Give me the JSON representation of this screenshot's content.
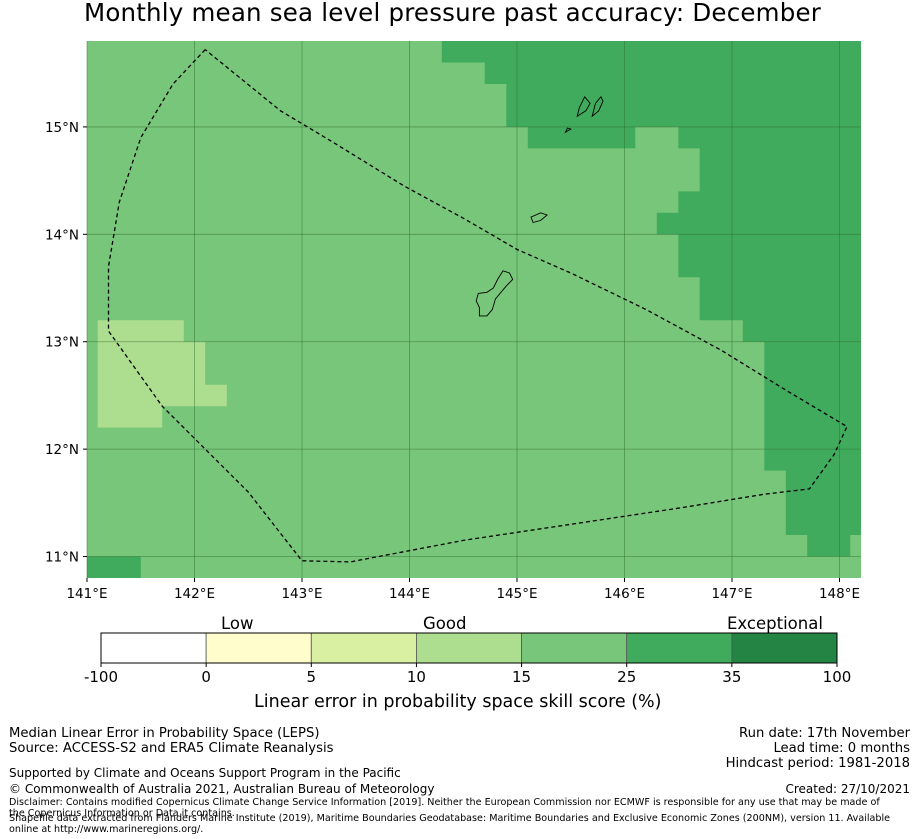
{
  "title": "Monthly mean sea level pressure past accuracy: December",
  "map": {
    "lon_range": [
      141.0,
      148.2
    ],
    "lat_range": [
      10.8,
      15.8
    ],
    "lon_ticks": [
      {
        "value": 141,
        "label": "141°E"
      },
      {
        "value": 142,
        "label": "142°E"
      },
      {
        "value": 143,
        "label": "143°E"
      },
      {
        "value": 144,
        "label": "144°E"
      },
      {
        "value": 145,
        "label": "145°E"
      },
      {
        "value": 146,
        "label": "146°E"
      },
      {
        "value": 147,
        "label": "147°E"
      },
      {
        "value": 148,
        "label": "148°E"
      }
    ],
    "lat_ticks": [
      {
        "value": 15,
        "label": "15°N"
      },
      {
        "value": 14,
        "label": "14°N"
      },
      {
        "value": 13,
        "label": "13°N"
      },
      {
        "value": 12,
        "label": "12°N"
      },
      {
        "value": 11,
        "label": "11°N"
      }
    ],
    "colors": {
      "cat_0_5": "#fffdcc",
      "cat_5_10": "#d9f0a3",
      "cat_10_15": "#addd8e",
      "cat_15_25": "#78c679",
      "cat_25_35": "#41ab5d",
      "cat_35_100": "#238443",
      "below_zero": "#ffffff"
    },
    "base_category": "cat_15_25",
    "regions": [
      {
        "category": "cat_25_35",
        "rings": [
          [
            [
              144.3,
              15.8
            ],
            [
              148.2,
              15.8
            ],
            [
              148.2,
              11.2
            ],
            [
              148.1,
              11.2
            ],
            [
              148.1,
              11.0
            ],
            [
              147.7,
              11.0
            ],
            [
              147.7,
              11.2
            ],
            [
              147.5,
              11.2
            ],
            [
              147.5,
              11.8
            ],
            [
              147.3,
              11.8
            ],
            [
              147.3,
              13.0
            ],
            [
              147.1,
              13.0
            ],
            [
              147.1,
              13.2
            ],
            [
              146.7,
              13.2
            ],
            [
              146.7,
              13.6
            ],
            [
              146.5,
              13.6
            ],
            [
              146.5,
              14.0
            ],
            [
              146.3,
              14.0
            ],
            [
              146.3,
              14.2
            ],
            [
              146.5,
              14.2
            ],
            [
              146.5,
              14.4
            ],
            [
              146.7,
              14.4
            ],
            [
              146.7,
              14.8
            ],
            [
              146.5,
              14.8
            ],
            [
              146.5,
              15.0
            ],
            [
              146.1,
              15.0
            ],
            [
              146.1,
              14.8
            ],
            [
              145.1,
              14.8
            ],
            [
              145.1,
              15.0
            ],
            [
              144.9,
              15.0
            ],
            [
              144.9,
              15.4
            ],
            [
              144.7,
              15.4
            ],
            [
              144.7,
              15.6
            ],
            [
              144.3,
              15.6
            ]
          ]
        ]
      },
      {
        "category": "cat_10_15",
        "rings": [
          [
            [
              141.1,
              13.2
            ],
            [
              141.9,
              13.2
            ],
            [
              141.9,
              13.0
            ],
            [
              142.1,
              13.0
            ],
            [
              142.1,
              12.6
            ],
            [
              142.3,
              12.6
            ],
            [
              142.3,
              12.4
            ],
            [
              141.7,
              12.4
            ],
            [
              141.7,
              12.2
            ],
            [
              141.1,
              12.2
            ]
          ]
        ]
      },
      {
        "category": "cat_25_35",
        "rings": [
          [
            [
              141.0,
              11.0
            ],
            [
              141.5,
              11.0
            ],
            [
              141.5,
              10.8
            ],
            [
              141.0,
              10.8
            ]
          ]
        ]
      }
    ],
    "islands": [
      [
        [
          144.65,
          13.24
        ],
        [
          144.72,
          13.24
        ],
        [
          144.77,
          13.3
        ],
        [
          144.8,
          13.4
        ],
        [
          144.9,
          13.52
        ],
        [
          144.96,
          13.58
        ],
        [
          144.93,
          13.64
        ],
        [
          144.87,
          13.66
        ],
        [
          144.82,
          13.58
        ],
        [
          144.78,
          13.5
        ],
        [
          144.72,
          13.46
        ],
        [
          144.64,
          13.45
        ],
        [
          144.62,
          13.38
        ],
        [
          144.65,
          13.32
        ]
      ],
      [
        [
          145.15,
          14.11
        ],
        [
          145.22,
          14.13
        ],
        [
          145.28,
          14.18
        ],
        [
          145.22,
          14.2
        ],
        [
          145.13,
          14.16
        ]
      ],
      [
        [
          145.56,
          15.1
        ],
        [
          145.64,
          15.15
        ],
        [
          145.68,
          15.22
        ],
        [
          145.63,
          15.28
        ],
        [
          145.58,
          15.18
        ]
      ],
      [
        [
          145.7,
          15.1
        ],
        [
          145.76,
          15.15
        ],
        [
          145.8,
          15.24
        ],
        [
          145.78,
          15.28
        ],
        [
          145.73,
          15.22
        ]
      ],
      [
        [
          145.45,
          14.95
        ],
        [
          145.5,
          14.98
        ],
        [
          145.47,
          14.99
        ]
      ]
    ],
    "eez_boundary": [
      [
        142.1,
        15.72
      ],
      [
        141.8,
        15.4
      ],
      [
        141.5,
        14.9
      ],
      [
        141.3,
        14.3
      ],
      [
        141.2,
        13.7
      ],
      [
        141.2,
        13.1
      ],
      [
        141.7,
        12.4
      ],
      [
        142.5,
        11.6
      ],
      [
        143.0,
        10.96
      ],
      [
        143.45,
        10.95
      ],
      [
        144.5,
        11.15
      ],
      [
        145.5,
        11.3
      ],
      [
        146.5,
        11.45
      ],
      [
        147.3,
        11.58
      ],
      [
        147.72,
        11.63
      ],
      [
        147.95,
        11.95
      ],
      [
        148.07,
        12.21
      ],
      [
        147.5,
        12.55
      ],
      [
        146.9,
        12.92
      ],
      [
        146.2,
        13.3
      ],
      [
        145.5,
        13.64
      ],
      [
        145.0,
        13.86
      ],
      [
        144.5,
        14.15
      ],
      [
        143.95,
        14.45
      ],
      [
        143.3,
        14.85
      ],
      [
        142.8,
        15.15
      ],
      [
        142.1,
        15.72
      ]
    ]
  },
  "colorbar": {
    "segments": [
      {
        "category": "below_zero"
      },
      {
        "category": "cat_0_5"
      },
      {
        "category": "cat_5_10"
      },
      {
        "category": "cat_10_15"
      },
      {
        "category": "cat_15_25"
      },
      {
        "category": "cat_25_35"
      },
      {
        "category": "cat_35_100"
      }
    ],
    "ticks": [
      "-100",
      "0",
      "5",
      "10",
      "15",
      "25",
      "35",
      "100"
    ],
    "low_label": "Low",
    "good_label": "Good",
    "exceptional_label": "Exceptional",
    "axis_label": "Linear error in probability space skill score (%)"
  },
  "footer": {
    "left_line1": "Median Linear Error in Probability Space (LEPS)",
    "left_line2": "Source: ACCESS-S2 and ERA5 Climate Reanalysis",
    "run_date": "Run date: 17th November",
    "lead_time": "Lead time: 0 months",
    "hindcast": "Hindcast period: 1981-2018",
    "supported": "Supported by Climate and Oceans Support Program in the Pacific",
    "copyright": "© Commonwealth of Australia 2021, Australian Bureau of Meteorology",
    "created": "Created: 27/10/2021",
    "disclaimer": "Disclaimer: Contains modified Copernicus Climate Change Service Information [2019]. Neither the European Commission nor ECMWF is responsible for any use that may be made of the Copernicus Information or Data it contains.",
    "shapefile": "Shapefile data extracted from Flanders Marine Institute (2019), Maritime Boundaries Geodatabase: Maritime Boundaries and Exclusive Economic Zones (200NM), version 11. Available online at http://www.marineregions.org/."
  }
}
